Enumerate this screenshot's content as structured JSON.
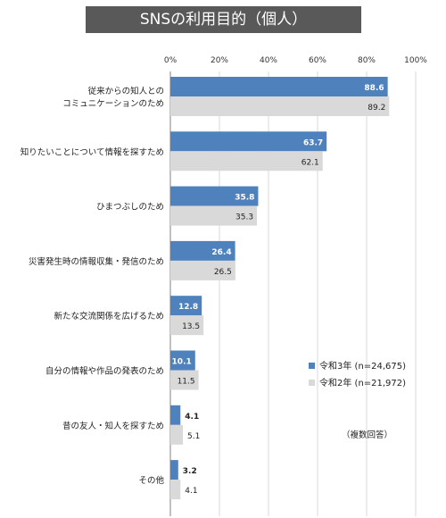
{
  "chart_data": {
    "type": "bar",
    "orientation": "horizontal",
    "title": "SNSの利用目的（個人）",
    "categories": [
      [
        "従来からの知人との",
        "コミュニケーションのため"
      ],
      [
        "知りたいことについて情報を探すため"
      ],
      [
        "ひまつぶしのため"
      ],
      [
        "災害発生時の情報収集・発信のため"
      ],
      [
        "新たな交流関係を広げるため"
      ],
      [
        "自分の情報や作品の発表のため"
      ],
      [
        "昔の友人・知人を探すため"
      ],
      [
        "その他"
      ]
    ],
    "series": [
      {
        "name": "令和3年 (n=24,675)",
        "color": "#4f81bd",
        "values": [
          88.6,
          63.7,
          35.8,
          26.4,
          12.8,
          10.1,
          4.1,
          3.2
        ]
      },
      {
        "name": "令和2年 (n=21,972)",
        "color": "#d9d9d9",
        "values": [
          89.2,
          62.1,
          35.3,
          26.5,
          13.5,
          11.5,
          5.1,
          4.1
        ]
      }
    ],
    "xlim": [
      0,
      100
    ],
    "xticks": [
      "0%",
      "20%",
      "40%",
      "60%",
      "80%",
      "100%"
    ],
    "xtick_values": [
      0,
      20,
      40,
      60,
      80,
      100
    ],
    "grid": true,
    "legend_position": "right",
    "note": "（複数回答）"
  }
}
